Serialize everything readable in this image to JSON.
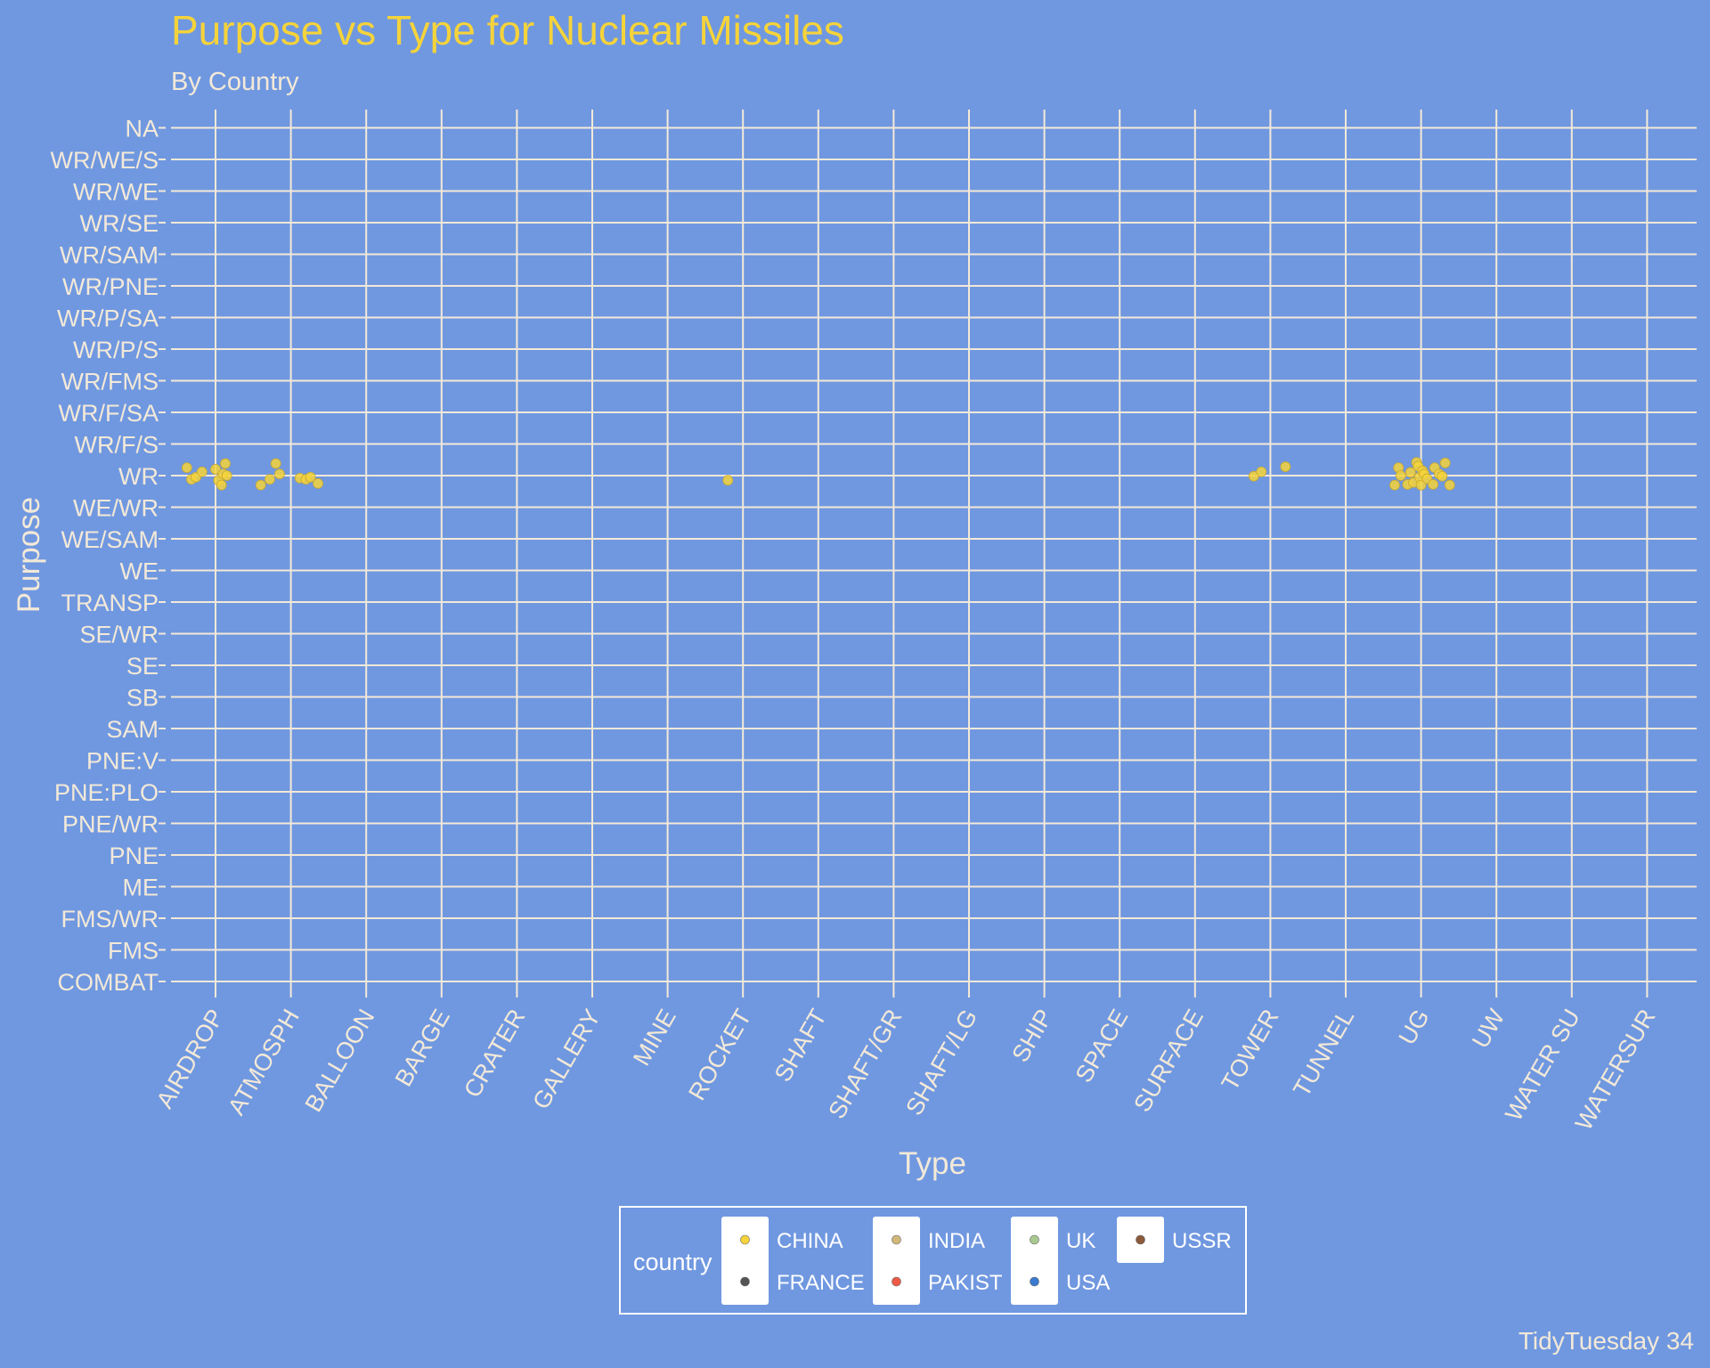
{
  "chart_data": {
    "type": "scatter",
    "title": "Purpose vs Type for Nuclear Missiles",
    "subtitle": "By Country",
    "xlabel": "Type",
    "ylabel": "Purpose",
    "caption": "TidyTuesday 34",
    "x_categories": [
      "AIRDROP",
      "ATMOSPH",
      "BALLOON",
      "BARGE",
      "CRATER",
      "GALLERY",
      "MINE",
      "ROCKET",
      "SHAFT",
      "SHAFT/GR",
      "SHAFT/LG",
      "SHIP",
      "SPACE",
      "SURFACE",
      "TOWER",
      "TUNNEL",
      "UG",
      "UW",
      "WATER SU",
      "WATERSUR"
    ],
    "y_categories": [
      "COMBAT",
      "FMS",
      "FMS/WR",
      "ME",
      "PNE",
      "PNE/WR",
      "PNE:PLO",
      "PNE:V",
      "SAM",
      "SB",
      "SE",
      "SE/WR",
      "TRANSP",
      "WE",
      "WE/SAM",
      "WE/WR",
      "WR",
      "WR/F/S",
      "WR/F/SA",
      "WR/FMS",
      "WR/P/S",
      "WR/P/SA",
      "WR/PNE",
      "WR/SAM",
      "WR/SE",
      "WR/WE",
      "WR/WE/S",
      "NA"
    ],
    "grid": true,
    "legend": {
      "title": "country",
      "position": "bottom",
      "entries": [
        {
          "label": "CHINA",
          "color": "#f5d33a"
        },
        {
          "label": "FRANCE",
          "color": "#555555"
        },
        {
          "label": "INDIA",
          "color": "#d2b778"
        },
        {
          "label": "PAKIST",
          "color": "#ef5a45"
        },
        {
          "label": "UK",
          "color": "#a8c890"
        },
        {
          "label": "USA",
          "color": "#3a7ad0"
        },
        {
          "label": "USSR",
          "color": "#8a5a3a"
        }
      ]
    },
    "series": [
      {
        "name": "CHINA",
        "color": "#f5d33a",
        "points": [
          {
            "x": "AIRDROP",
            "jx": -0.38,
            "y": "WR",
            "jy": 0.25
          },
          {
            "x": "AIRDROP",
            "jx": -0.32,
            "y": "WR",
            "jy": -0.12
          },
          {
            "x": "AIRDROP",
            "jx": -0.26,
            "y": "WR",
            "jy": -0.05
          },
          {
            "x": "AIRDROP",
            "jx": -0.18,
            "y": "WR",
            "jy": 0.12
          },
          {
            "x": "AIRDROP",
            "jx": 0.0,
            "y": "WR",
            "jy": 0.2
          },
          {
            "x": "AIRDROP",
            "jx": 0.04,
            "y": "WR",
            "jy": -0.15
          },
          {
            "x": "AIRDROP",
            "jx": 0.08,
            "y": "WR",
            "jy": -0.3
          },
          {
            "x": "AIRDROP",
            "jx": 0.1,
            "y": "WR",
            "jy": 0.05
          },
          {
            "x": "AIRDROP",
            "jx": 0.13,
            "y": "WR",
            "jy": 0.38
          },
          {
            "x": "AIRDROP",
            "jx": 0.15,
            "y": "WR",
            "jy": 0.0
          },
          {
            "x": "ATMOSPH",
            "jx": -0.4,
            "y": "WR",
            "jy": -0.3
          },
          {
            "x": "ATMOSPH",
            "jx": -0.28,
            "y": "WR",
            "jy": -0.12
          },
          {
            "x": "ATMOSPH",
            "jx": -0.2,
            "y": "WR",
            "jy": 0.38
          },
          {
            "x": "ATMOSPH",
            "jx": -0.15,
            "y": "WR",
            "jy": 0.05
          },
          {
            "x": "ATMOSPH",
            "jx": 0.12,
            "y": "WR",
            "jy": -0.08
          },
          {
            "x": "ATMOSPH",
            "jx": 0.2,
            "y": "WR",
            "jy": -0.12
          },
          {
            "x": "ATMOSPH",
            "jx": 0.26,
            "y": "WR",
            "jy": -0.05
          },
          {
            "x": "ATMOSPH",
            "jx": 0.36,
            "y": "WR",
            "jy": -0.25
          },
          {
            "x": "ROCKET",
            "jx": -0.2,
            "y": "WR",
            "jy": -0.15
          },
          {
            "x": "TOWER",
            "jx": -0.22,
            "y": "WR",
            "jy": -0.02
          },
          {
            "x": "TOWER",
            "jx": -0.12,
            "y": "WR",
            "jy": 0.12
          },
          {
            "x": "TOWER",
            "jx": 0.2,
            "y": "WR",
            "jy": 0.28
          },
          {
            "x": "UG",
            "jx": -0.35,
            "y": "WR",
            "jy": -0.3
          },
          {
            "x": "UG",
            "jx": -0.3,
            "y": "WR",
            "jy": 0.25
          },
          {
            "x": "UG",
            "jx": -0.27,
            "y": "WR",
            "jy": 0.0
          },
          {
            "x": "UG",
            "jx": -0.18,
            "y": "WR",
            "jy": -0.28
          },
          {
            "x": "UG",
            "jx": -0.14,
            "y": "WR",
            "jy": 0.1
          },
          {
            "x": "UG",
            "jx": -0.1,
            "y": "WR",
            "jy": -0.22
          },
          {
            "x": "UG",
            "jx": -0.06,
            "y": "WR",
            "jy": 0.42
          },
          {
            "x": "UG",
            "jx": -0.04,
            "y": "WR",
            "jy": 0.3
          },
          {
            "x": "UG",
            "jx": -0.02,
            "y": "WR",
            "jy": -0.05
          },
          {
            "x": "UG",
            "jx": 0.0,
            "y": "WR",
            "jy": -0.3
          },
          {
            "x": "UG",
            "jx": 0.02,
            "y": "WR",
            "jy": 0.15
          },
          {
            "x": "UG",
            "jx": 0.04,
            "y": "WR",
            "jy": 0.05
          },
          {
            "x": "UG",
            "jx": 0.08,
            "y": "WR",
            "jy": -0.1
          },
          {
            "x": "UG",
            "jx": 0.16,
            "y": "WR",
            "jy": -0.28
          },
          {
            "x": "UG",
            "jx": 0.18,
            "y": "WR",
            "jy": 0.25
          },
          {
            "x": "UG",
            "jx": 0.24,
            "y": "WR",
            "jy": 0.05
          },
          {
            "x": "UG",
            "jx": 0.28,
            "y": "WR",
            "jy": -0.02
          },
          {
            "x": "UG",
            "jx": 0.32,
            "y": "WR",
            "jy": 0.4
          },
          {
            "x": "UG",
            "jx": 0.38,
            "y": "WR",
            "jy": -0.3
          }
        ]
      }
    ]
  }
}
